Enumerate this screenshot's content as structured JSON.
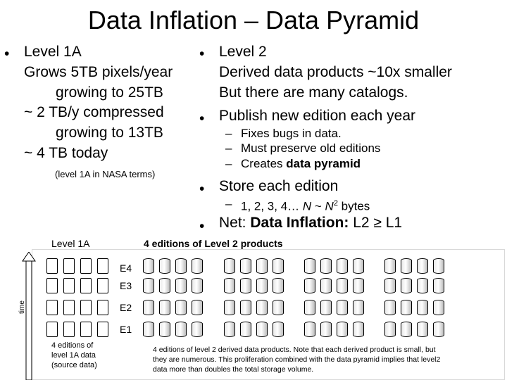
{
  "title": "Data Inflation – Data Pyramid",
  "left": {
    "level1a_bullet": "Level 1A",
    "lines": [
      "Grows 5TB pixels/year",
      "growing to 25TB",
      "~ 2 TB/y compressed",
      "growing to 13TB",
      "~ 4 TB today"
    ],
    "note": "(level 1A in NASA terms)"
  },
  "right": {
    "level2_bullet": "Level 2",
    "level2_lines": [
      "Derived data products ~10x smaller",
      "But there are many catalogs."
    ],
    "publish_bullet": "Publish new edition each year",
    "publish_subs": [
      "Fixes bugs in data.",
      "Must preserve old editions"
    ],
    "creates_prefix": "Creates ",
    "creates_bold": "data pyramid",
    "store_bullet": "Store each edition",
    "store_sub_a": "1, 2, 3, 4… ",
    "store_sub_n": "N",
    "store_sub_mid": " ~ ",
    "store_sub_n2": "N",
    "store_sub_exp": "2",
    "store_sub_end": " bytes",
    "net_prefix": "Net: ",
    "net_bold": "Data Inflation:",
    "net_suffix": " L2 ≥ L1"
  },
  "diagram": {
    "level1a_label": "Level 1A",
    "editions_label": "4 editions of Level 2 products",
    "time_label": "time",
    "edition_labels": [
      "E4",
      "E3",
      "E2",
      "E1"
    ],
    "level1a_caption": [
      "4 editions of",
      "level 1A data",
      "(source data)"
    ],
    "footnote": "4 editions of level 2 derived data products.  Note that each derived product is small, but they are numerous. This proliferation combined with the data pyramid implies that level2 data more than doubles the total storage volume.",
    "level1a_rows": 4,
    "level1a_cols": 4,
    "product_groups": 4,
    "group_cols": 4,
    "group_rows": 4
  }
}
